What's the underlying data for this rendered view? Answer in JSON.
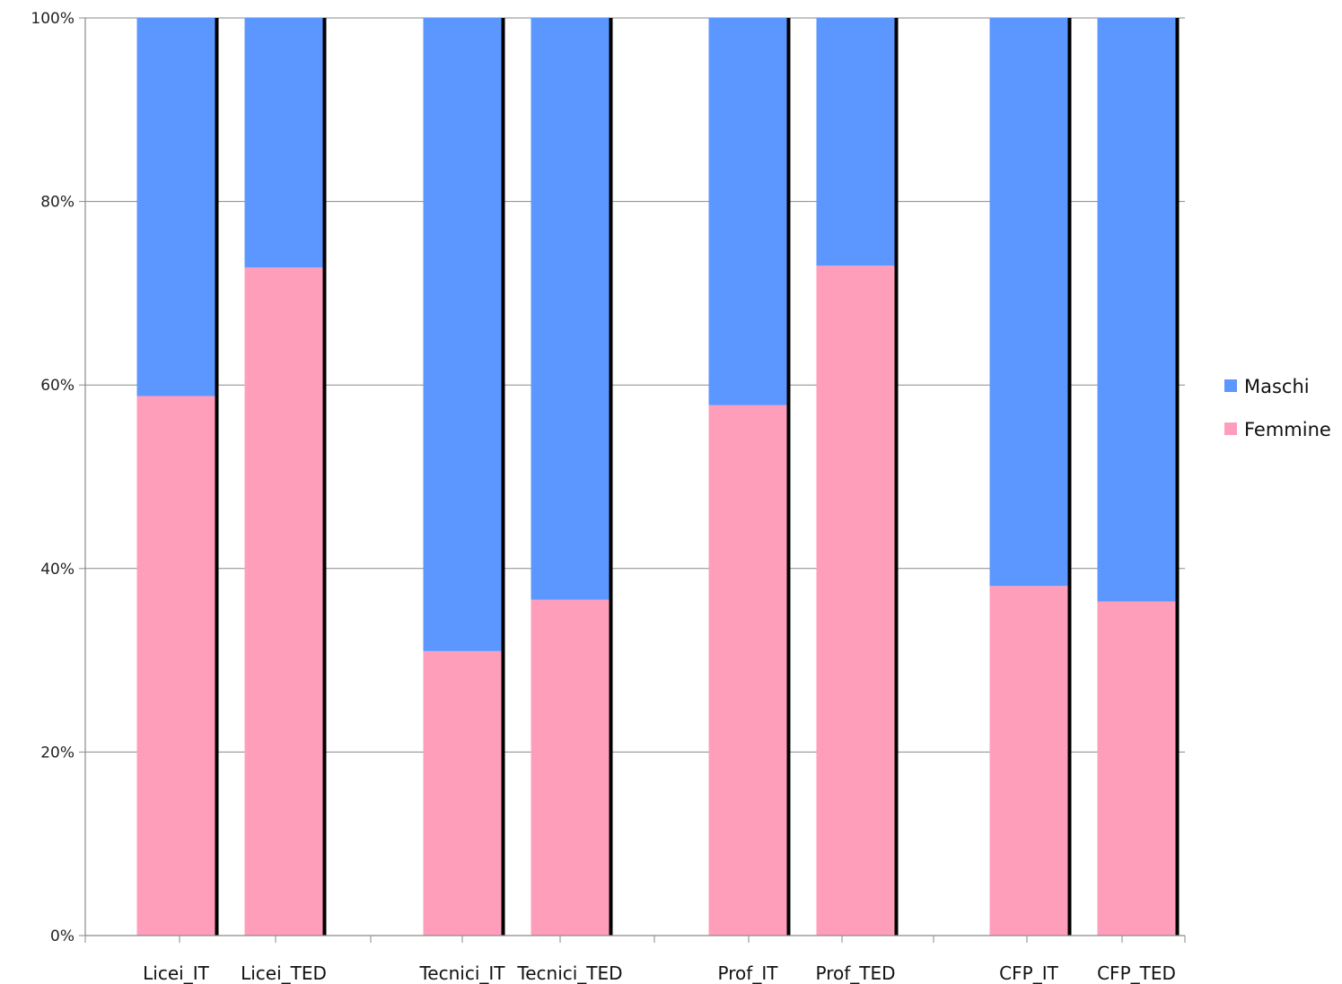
{
  "chart_data": {
    "type": "bar",
    "stacked": "percent",
    "title": "",
    "xlabel": "",
    "ylabel": "",
    "ylim": [
      0,
      100
    ],
    "yticks": [
      "0%",
      "20%",
      "40%",
      "60%",
      "80%",
      "100%"
    ],
    "grid": "horizontal",
    "legend_position": "right",
    "categories": [
      "Licei_IT",
      "Licei_TED",
      "Tecnici_IT",
      "Tecnici_TED",
      "Prof_IT",
      "Prof_TED",
      "CFP_IT",
      "CFP_TED"
    ],
    "series": [
      {
        "name": "Maschi",
        "color": "#5b97ff",
        "values": [
          41.2,
          27.2,
          69.0,
          63.4,
          42.2,
          27.0,
          61.9,
          63.6
        ]
      },
      {
        "name": "Femmine",
        "color": "#ff9ebb",
        "values": [
          58.8,
          72.8,
          31.0,
          36.6,
          57.8,
          73.0,
          38.1,
          36.4
        ]
      }
    ]
  }
}
